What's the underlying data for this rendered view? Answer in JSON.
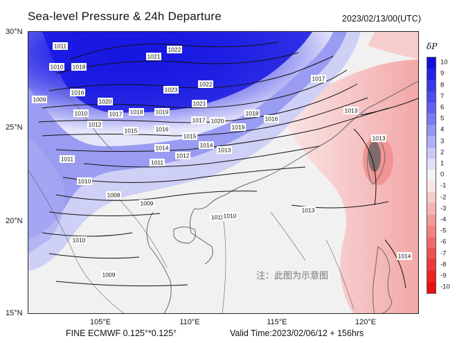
{
  "title": "Sea-level Pressure & 24h Departure",
  "datetime": "2023/02/13/00(UTC)",
  "footer": {
    "model": "FINE ECMWF 0.125°*0.125°",
    "valid": "Valid Time:2023/02/06/12 + 156hrs"
  },
  "watermark": "注：此图为示意图",
  "axes": {
    "lat_labels": [
      "30°N",
      "25°N",
      "20°N",
      "15°N"
    ],
    "lon_labels": [
      "105°E",
      "110°E",
      "115°E",
      "120°E"
    ]
  },
  "legend": {
    "title": "δP",
    "levels": [
      "10",
      "9",
      "8",
      "7",
      "6",
      "5",
      "4",
      "3",
      "2",
      "1",
      "0",
      "-1",
      "-2",
      "-3",
      "-4",
      "-5",
      "-6",
      "-7",
      "-8",
      "-9",
      "-10"
    ],
    "colors": [
      "#1010e0",
      "#2424e6",
      "#3838ea",
      "#4c4ced",
      "#6262f0",
      "#7a7af2",
      "#9494f4",
      "#aeaef6",
      "#c8c8f8",
      "#e0e0fa",
      "#f4f4f4",
      "#fae4e4",
      "#f8cccc",
      "#f6b4b4",
      "#f49a9a",
      "#f28080",
      "#f06868",
      "#ee5050",
      "#ec3838",
      "#ea2424",
      "#e81010"
    ]
  },
  "isobar_labels": [
    "1021",
    "1022",
    "1011",
    "1010",
    "1018",
    "1022",
    "1023",
    "1016",
    "1009",
    "1020",
    "1021",
    "1019",
    "1017",
    "1018",
    "1010",
    "1016",
    "1012",
    "1017",
    "1020",
    "1015",
    "1019",
    "1018",
    "1016",
    "1013",
    "1015",
    "1014",
    "1017",
    "1014",
    "1013",
    "1012",
    "1011",
    "1011",
    "1010",
    "1008",
    "1009",
    "1010",
    "1011",
    "1013",
    "1010",
    "1009",
    "1013",
    "1014"
  ]
}
